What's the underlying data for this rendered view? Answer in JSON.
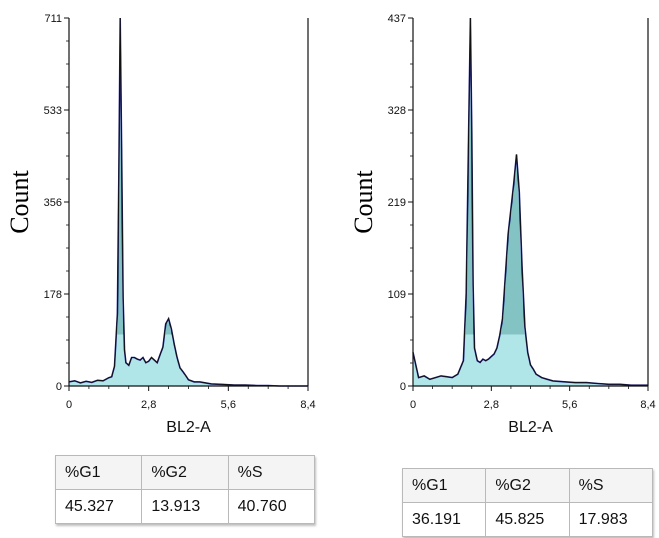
{
  "chart_data": [
    {
      "type": "area",
      "xlabel": "BL2-A",
      "ylabel": "Count",
      "x_ticks": [
        "0",
        "2,8",
        "5,6",
        "8,4"
      ],
      "y_ticks": [
        "0",
        "178",
        "356",
        "533",
        "711"
      ],
      "xlim": [
        0,
        8.4
      ],
      "ylim": [
        0,
        711
      ],
      "series": [
        {
          "x": [
            0,
            0.2,
            0.4,
            0.6,
            0.8,
            1.0,
            1.2,
            1.4,
            1.5,
            1.6,
            1.7,
            1.75,
            1.8,
            1.85,
            1.9,
            1.95,
            2.0,
            2.1,
            2.2,
            2.3,
            2.4,
            2.5,
            2.6,
            2.7,
            2.8,
            2.9,
            3.0,
            3.1,
            3.2,
            3.3,
            3.4,
            3.5,
            3.6,
            3.7,
            3.8,
            3.9,
            4.0,
            4.1,
            4.2,
            4.4,
            4.6,
            4.8,
            5.0,
            5.4,
            5.8,
            6.2,
            6.6,
            7.0,
            7.4,
            7.8,
            8.4
          ],
          "values": [
            8,
            10,
            6,
            9,
            7,
            11,
            10,
            16,
            18,
            38,
            140,
            400,
            711,
            460,
            170,
            70,
            45,
            40,
            55,
            55,
            52,
            50,
            55,
            45,
            48,
            55,
            50,
            45,
            60,
            75,
            120,
            130,
            110,
            80,
            55,
            35,
            28,
            20,
            12,
            8,
            8,
            6,
            4,
            3,
            2,
            2,
            1,
            1,
            0,
            0,
            0
          ]
        }
      ],
      "stats": {
        "headers": [
          "%G1",
          "%G2",
          "%S"
        ],
        "values": [
          "45.327",
          "13.913",
          "40.760"
        ]
      }
    },
    {
      "type": "area",
      "xlabel": "BL2-A",
      "ylabel": "Count",
      "x_ticks": [
        "0",
        "2,8",
        "5,6",
        "8,4"
      ],
      "y_ticks": [
        "0",
        "109",
        "219",
        "328",
        "437"
      ],
      "xlim": [
        0,
        8.4
      ],
      "ylim": [
        0,
        437
      ],
      "series": [
        {
          "x": [
            0,
            0.2,
            0.4,
            0.6,
            0.8,
            1.0,
            1.2,
            1.4,
            1.6,
            1.8,
            1.9,
            2.0,
            2.05,
            2.1,
            2.15,
            2.2,
            2.3,
            2.4,
            2.5,
            2.6,
            2.7,
            2.8,
            2.9,
            3.0,
            3.1,
            3.2,
            3.3,
            3.4,
            3.5,
            3.6,
            3.7,
            3.8,
            3.9,
            4.0,
            4.1,
            4.2,
            4.3,
            4.4,
            4.6,
            4.8,
            5.0,
            5.4,
            5.8,
            6.2,
            6.6,
            7.0,
            7.4,
            7.8,
            8.4
          ],
          "values": [
            40,
            10,
            12,
            8,
            10,
            12,
            11,
            10,
            14,
            30,
            110,
            330,
            437,
            300,
            120,
            45,
            30,
            28,
            32,
            30,
            32,
            35,
            38,
            45,
            60,
            80,
            130,
            180,
            210,
            240,
            275,
            230,
            140,
            70,
            40,
            25,
            20,
            14,
            10,
            8,
            6,
            5,
            4,
            4,
            3,
            2,
            2,
            1,
            1
          ]
        }
      ],
      "stats": {
        "headers": [
          "%G1",
          "%G2",
          "%S"
        ],
        "values": [
          "36.191",
          "45.825",
          "17.983"
        ]
      }
    }
  ]
}
